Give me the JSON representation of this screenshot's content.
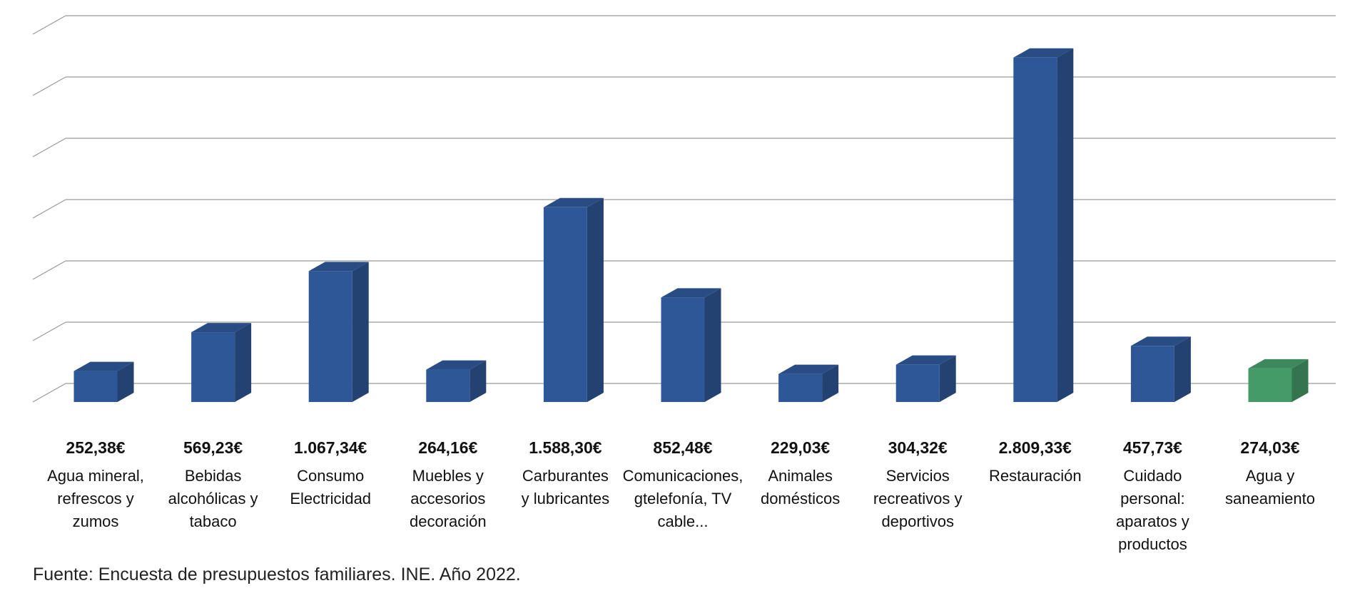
{
  "chart_data": {
    "type": "bar",
    "title": "",
    "xlabel": "",
    "ylabel": "",
    "ylim": [
      0,
      3000
    ],
    "grid": true,
    "y_gridlines": [
      0,
      500,
      1000,
      1500,
      2000,
      2500,
      3000
    ],
    "categories": [
      [
        "Agua mineral,",
        "refrescos y",
        "zumos"
      ],
      [
        "Bebidas",
        "alcohólicas y",
        "tabaco"
      ],
      [
        "Consumo",
        "Electricidad"
      ],
      [
        "Muebles y",
        "accesorios",
        "decoración"
      ],
      [
        "Carburantes",
        "y lubricantes"
      ],
      [
        "Comunicaciones,",
        "gtelefonía, TV",
        "cable..."
      ],
      [
        "Animales",
        "domésticos"
      ],
      [
        "Servicios",
        "recreativos y",
        "deportivos"
      ],
      [
        "Restauración"
      ],
      [
        "Cuidado",
        "personal:",
        "aparatos y",
        "productos"
      ],
      [
        "Agua y",
        "saneamiento"
      ]
    ],
    "values": [
      252.38,
      569.23,
      1067.34,
      264.16,
      1588.3,
      852.48,
      229.03,
      304.32,
      2809.33,
      457.73,
      274.03
    ],
    "value_labels": [
      "252,38€",
      "569,23€",
      "1.067,34€",
      "264,16€",
      "1.588,30€",
      "852,48€",
      "229,03€",
      "304,32€",
      "2.809,33€",
      "457,73€",
      "274,03€"
    ],
    "bar_colors": [
      "#2e5797",
      "#2e5797",
      "#2e5797",
      "#2e5797",
      "#2e5797",
      "#2e5797",
      "#2e5797",
      "#2e5797",
      "#2e5797",
      "#2e5797",
      "#459b68"
    ],
    "source": "Fuente: Encuesta de presupuestos familiares. INE. Año 2022."
  }
}
